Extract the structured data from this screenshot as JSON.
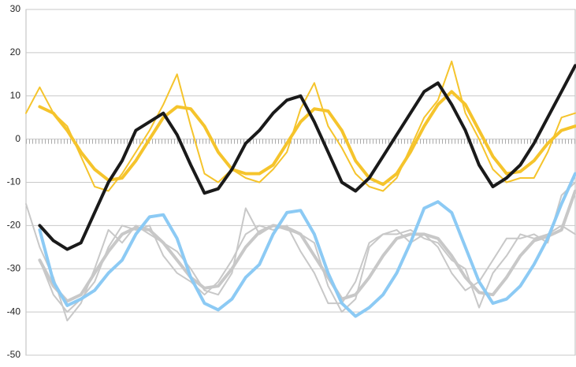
{
  "chart_data": {
    "type": "line",
    "categories": [
      null,
      null,
      null,
      null,
      null,
      null,
      null,
      null,
      null,
      null,
      null,
      null,
      null,
      null,
      null,
      null,
      null,
      null,
      null,
      null,
      null,
      null,
      null,
      null,
      null,
      null,
      null,
      null,
      null,
      null,
      null,
      null,
      null,
      null,
      null,
      null,
      null,
      null,
      null,
      null,
      null
    ],
    "ylim": [
      -50,
      30
    ],
    "yticks": [
      -50,
      -40,
      -30,
      -20,
      -10,
      0,
      10,
      20,
      30
    ],
    "grid": true,
    "series": [
      {
        "color": "#c8c8c8",
        "style": "thin",
        "values": [
          -15,
          -25,
          -32,
          -42,
          -38,
          -30,
          -21,
          -24,
          -20,
          -22,
          -24,
          -26,
          -30,
          -35,
          -36,
          -31,
          -16,
          -22,
          -20,
          -21,
          -22,
          -24,
          -34,
          -40,
          -37,
          -25,
          -22,
          -22,
          -21,
          -23,
          -24,
          -28,
          -30,
          -39,
          -31,
          -27,
          -22,
          -23,
          -22,
          -20,
          -22
        ]
      },
      {
        "color": "#c8c8c8",
        "style": "thin",
        "values": [
          null,
          -28,
          -36,
          -40,
          -37,
          -33,
          -25,
          -20,
          -21,
          -20,
          -27,
          -31,
          -33,
          -36,
          -33,
          -28,
          -22,
          -20,
          -21,
          -20,
          -26,
          -31,
          -38,
          -38,
          -33,
          -24,
          -22,
          -21,
          -24,
          -22,
          -25,
          -31,
          -35,
          -33,
          -28,
          -23,
          -23,
          -22,
          -24,
          -13,
          -10
        ]
      },
      {
        "color": "#c8c8c8",
        "style": "thick",
        "values": [
          null,
          -28,
          -34,
          -37.5,
          -36,
          -31,
          -26,
          -22,
          -20.5,
          -21,
          -24,
          -28,
          -32,
          -34.5,
          -34,
          -30,
          -25,
          -21.5,
          -20,
          -20.5,
          -22,
          -27,
          -32,
          -37,
          -36,
          -32,
          -27,
          -23,
          -22,
          -22,
          -23,
          -27,
          -32,
          -35.5,
          -36,
          -32,
          -27,
          -23.5,
          -22.5,
          -21,
          -12
        ]
      },
      {
        "color": "#f5c42c",
        "style": "thin",
        "values": [
          6,
          12,
          6,
          3,
          -4,
          -11,
          -12,
          -8,
          -3,
          2,
          8,
          15,
          3,
          -8,
          -10,
          -7,
          -9,
          -10,
          -7,
          -3,
          7,
          13,
          3,
          -2,
          -8,
          -11,
          -12,
          -9,
          -2,
          5,
          9,
          18,
          6,
          0,
          -7,
          -10,
          -9,
          -9,
          -3,
          5,
          6
        ]
      },
      {
        "color": "#f5c42c",
        "style": "thick",
        "values": [
          null,
          7.5,
          6,
          2,
          -3,
          -7,
          -9.5,
          -9,
          -5,
          0,
          5,
          7.5,
          7,
          3,
          -3,
          -7,
          -8,
          -8,
          -6,
          -1,
          4,
          7,
          6.5,
          2,
          -5,
          -9,
          -10.5,
          -8,
          -3,
          3,
          8,
          11,
          8,
          2,
          -4,
          -8,
          -7.5,
          -5,
          -1,
          2,
          3
        ]
      },
      {
        "color": "#8ccaf4",
        "style": "thick",
        "values": [
          null,
          -21,
          -33,
          -38.5,
          -37,
          -35,
          -31,
          -28,
          -22,
          -18,
          -17.5,
          -23,
          -32,
          -38,
          -39.5,
          -37,
          -32,
          -29,
          -22,
          -17,
          -16.5,
          -22,
          -31,
          -38,
          -41,
          -39,
          -36,
          -31,
          -24,
          -16,
          -14.5,
          -17,
          -25,
          -33,
          -38,
          -37,
          -34,
          -29,
          -23,
          -15,
          -8
        ]
      },
      {
        "color": "#1a1a1a",
        "style": "thick",
        "values": [
          null,
          -20,
          -23.5,
          -25.5,
          -24,
          -17,
          -10,
          -5,
          2,
          4,
          6,
          1,
          -6,
          -12.5,
          -11.5,
          -7,
          -1,
          2,
          6,
          9,
          10,
          4,
          -3,
          -10,
          -12,
          -9,
          -4,
          1,
          6,
          11,
          13,
          8,
          2,
          -6,
          -11,
          -9,
          -6,
          -1,
          5,
          11,
          17
        ]
      }
    ]
  }
}
